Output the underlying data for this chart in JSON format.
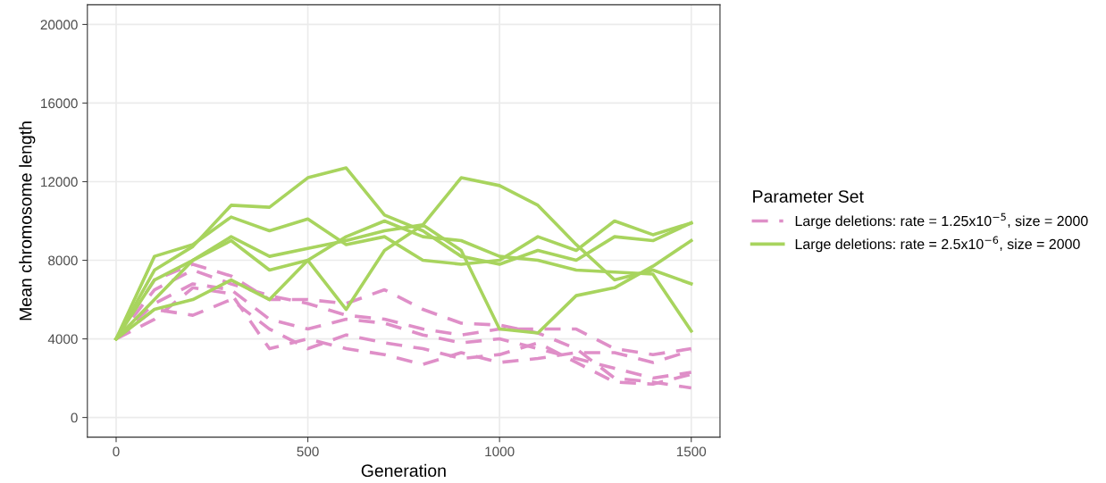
{
  "chart_data": {
    "type": "line",
    "xlabel": "Generation",
    "ylabel": "Mean chromosome length",
    "legend_title": "Parameter Set",
    "legend": "right",
    "grid": true,
    "xlim": [
      -75,
      1575
    ],
    "xticks": [
      0,
      500,
      1000,
      1500
    ],
    "ylim": [
      -1000,
      21000
    ],
    "yticks": [
      0,
      4000,
      8000,
      12000,
      16000,
      20000
    ],
    "x": [
      0,
      100,
      200,
      300,
      400,
      500,
      600,
      700,
      800,
      900,
      1000,
      1100,
      1200,
      1300,
      1400,
      1500
    ],
    "series": [
      {
        "name": "Large deletions: rate = 1.25x10$^{−5}$, size = 2000",
        "color": "#df8fc8",
        "line_style": "dashed",
        "values": [
          4000,
          7000,
          7800,
          7200,
          6000,
          6000,
          5800,
          6500,
          5500,
          4800,
          4700,
          4300,
          3500,
          2000,
          1800,
          1500
        ]
      },
      {
        "color": "#df8fc8",
        "line_style": "dashed",
        "values": [
          4000,
          6500,
          7500,
          6800,
          6200,
          5800,
          5200,
          5000,
          4500,
          4200,
          4500,
          4500,
          4500,
          3500,
          3200,
          3500
        ]
      },
      {
        "color": "#df8fc8",
        "line_style": "dashed",
        "values": [
          4000,
          5800,
          6800,
          6500,
          5000,
          4500,
          5000,
          4800,
          4200,
          3800,
          4000,
          3500,
          3000,
          2500,
          2000,
          2300
        ]
      },
      {
        "color": "#df8fc8",
        "line_style": "dashed",
        "values": [
          4000,
          5500,
          5200,
          6000,
          4500,
          3500,
          4200,
          3800,
          3500,
          3000,
          3200,
          3800,
          2800,
          1800,
          1700,
          2200
        ]
      },
      {
        "color": "#df8fc8",
        "line_style": "dashed",
        "values": [
          4000,
          5000,
          6600,
          6300,
          3500,
          4000,
          3500,
          3200,
          2700,
          3300,
          2800,
          3000,
          3300,
          3300,
          2800,
          3400
        ]
      },
      {
        "name": "Large deletions: rate = 2.5x10$^{−6}$, size = 2000",
        "color": "#a8d45e",
        "line_style": "solid",
        "values": [
          4000,
          7500,
          8700,
          10800,
          10700,
          12200,
          12700,
          10300,
          9500,
          8200,
          7800,
          8500,
          8000,
          9200,
          9000,
          9900
        ]
      },
      {
        "color": "#a8d45e",
        "line_style": "solid",
        "values": [
          4000,
          7000,
          8000,
          9200,
          8200,
          8600,
          9000,
          9500,
          9800,
          12200,
          11800,
          10800,
          8800,
          7000,
          7500,
          6800
        ]
      },
      {
        "color": "#a8d45e",
        "line_style": "solid",
        "values": [
          4000,
          6000,
          8000,
          9000,
          7500,
          8000,
          5500,
          8500,
          9800,
          8500,
          4500,
          4300,
          6200,
          6600,
          7700,
          9000
        ]
      },
      {
        "color": "#a8d45e",
        "line_style": "solid",
        "values": [
          4000,
          5500,
          6000,
          7000,
          6000,
          8000,
          9200,
          10000,
          9200,
          9000,
          8200,
          8000,
          7500,
          7400,
          7300,
          4400
        ]
      },
      {
        "color": "#a8d45e",
        "line_style": "solid",
        "values": [
          4000,
          8200,
          8800,
          10200,
          9500,
          10100,
          8800,
          9200,
          8000,
          7800,
          8000,
          9200,
          8500,
          10000,
          9300,
          9900
        ]
      }
    ]
  }
}
